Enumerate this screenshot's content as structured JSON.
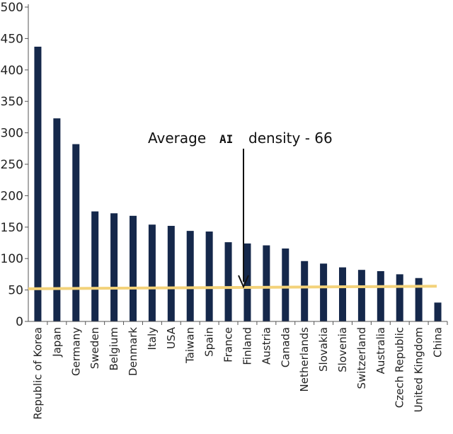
{
  "chart_data": {
    "type": "bar",
    "categories": [
      "Republic of Korea",
      "Japan",
      "Germany",
      "Sweden",
      "Belgium",
      "Denmark",
      "Italy",
      "USA",
      "Taiwan",
      "Spain",
      "France",
      "Finland",
      "Austria",
      "Canada",
      "Netherlands",
      "Slovakia",
      "Slovenia",
      "Switzerland",
      "Australia",
      "Czech Republic",
      "United Kingdom",
      "China"
    ],
    "values": [
      437,
      323,
      282,
      175,
      172,
      168,
      154,
      152,
      144,
      143,
      126,
      124,
      121,
      116,
      96,
      92,
      86,
      82,
      80,
      75,
      69,
      30
    ],
    "yticks": [
      0,
      50,
      100,
      150,
      200,
      250,
      300,
      350,
      400,
      450,
      500
    ],
    "ylim": [
      0,
      500
    ],
    "grid": false,
    "reference_line": {
      "start_value": 52,
      "end_value": 56
    },
    "annotation": {
      "prefix": "Average",
      "highlight": "AI",
      "suffix": "density - 66"
    },
    "colors": {
      "bar": "#15284b",
      "reference": "#f3d27a",
      "axis": "#555555",
      "arrow": "#111111"
    }
  }
}
